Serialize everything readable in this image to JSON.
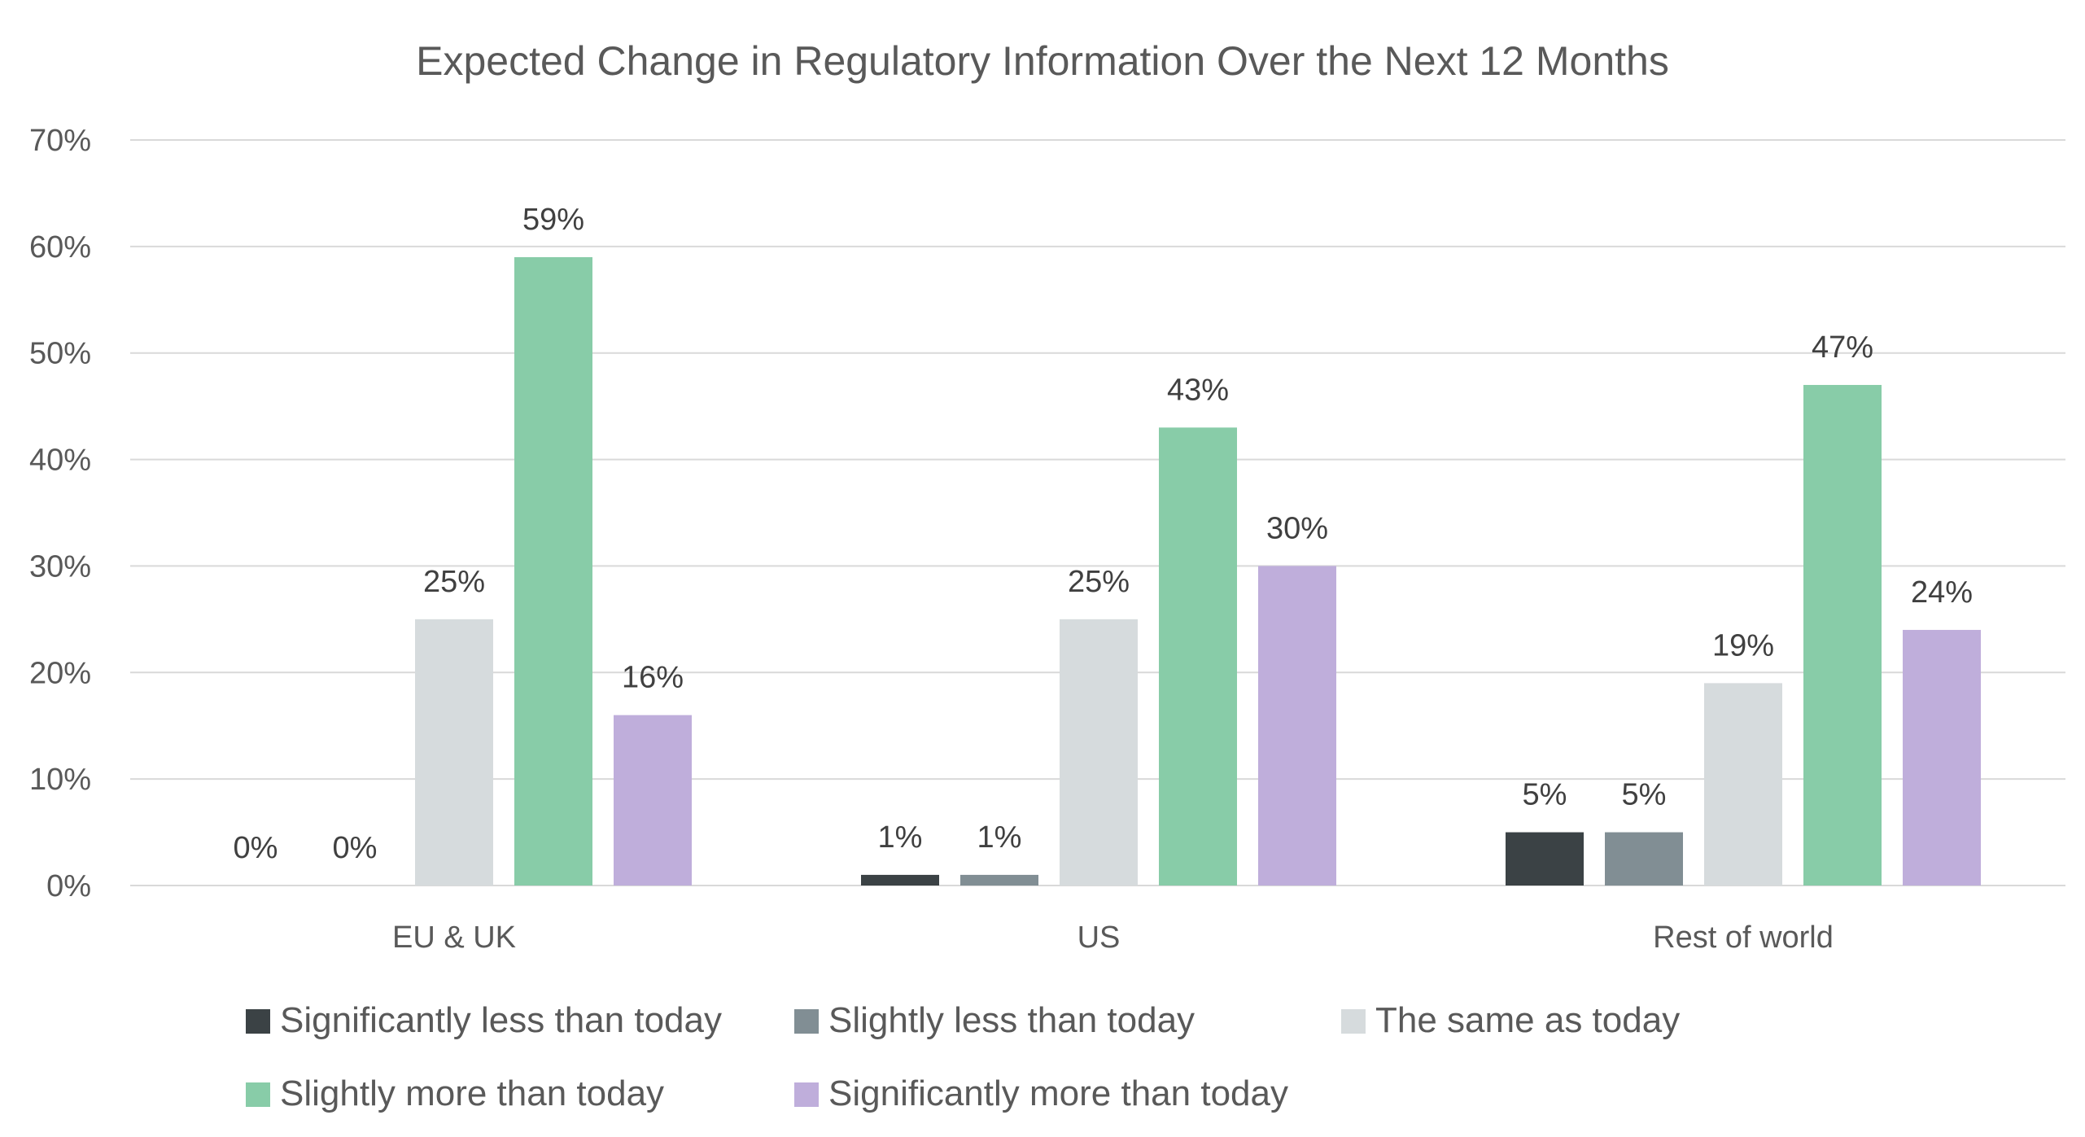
{
  "chart_data": {
    "type": "bar",
    "title": "Expected Change in Regulatory Information Over the Next 12 Months",
    "xlabel": "",
    "ylabel": "",
    "categories": [
      "EU & UK",
      "US",
      "Rest of world"
    ],
    "ylim": [
      0,
      70
    ],
    "yticks": [
      0,
      10,
      20,
      30,
      40,
      50,
      60,
      70
    ],
    "ytick_labels": [
      "0%",
      "10%",
      "20%",
      "30%",
      "40%",
      "50%",
      "60%",
      "70%"
    ],
    "value_suffix": "%",
    "grid": true,
    "legend_position": "bottom",
    "series": [
      {
        "name": "Significantly less than today",
        "color": "#3b4245",
        "values": [
          0,
          1,
          5
        ]
      },
      {
        "name": "Slightly less than today",
        "color": "#818e94",
        "values": [
          0,
          1,
          5
        ]
      },
      {
        "name": "The same as today",
        "color": "#d6dbdd",
        "values": [
          25,
          25,
          19
        ]
      },
      {
        "name": "Slightly more than today",
        "color": "#88cca8",
        "values": [
          59,
          43,
          47
        ]
      },
      {
        "name": "Significantly more than today",
        "color": "#bfaedb",
        "values": [
          16,
          30,
          24
        ]
      }
    ]
  }
}
